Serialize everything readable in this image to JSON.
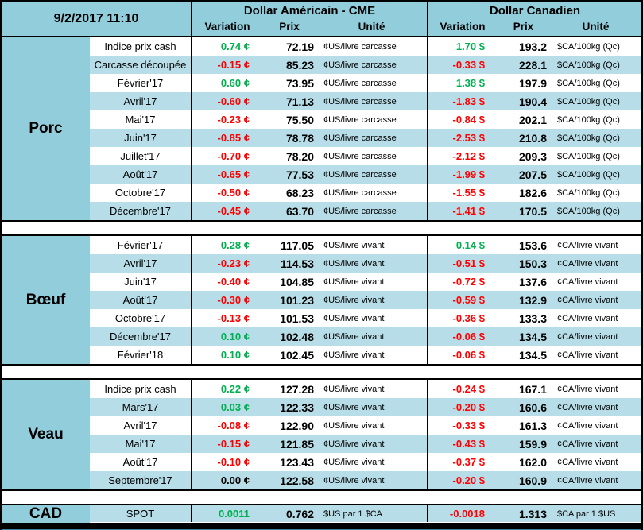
{
  "timestamp": "9/2/2017 11:10",
  "header": {
    "us": {
      "title": "Dollar Américain - CME",
      "cols": [
        "Variation",
        "Prix",
        "Unité"
      ]
    },
    "ca": {
      "title": "Dollar Canadien",
      "cols": [
        "Variation",
        "Prix",
        "Unité"
      ]
    }
  },
  "colors": {
    "positive": "#00B050",
    "negative": "#FF0000",
    "zero": "#000000",
    "header_bg": "#92CDDC",
    "stripe_bg": "#B7DEE8",
    "accent_bar": "#31859C"
  },
  "sections": [
    {
      "name": "Porc",
      "rows": [
        [
          "Indice prix cash",
          "0.74 ¢",
          "72.19",
          "¢US/livre carcasse",
          "1.70 $",
          "193.2",
          "$CA/100kg (Qc)"
        ],
        [
          "Carcasse découpée",
          "-0.15 ¢",
          "85.23",
          "¢US/livre carcasse",
          "-0.33 $",
          "228.1",
          "$CA/100kg (Qc)"
        ],
        [
          "Février'17",
          "0.60 ¢",
          "73.95",
          "¢US/livre carcasse",
          "1.38 $",
          "197.9",
          "$CA/100kg (Qc)"
        ],
        [
          "Avril'17",
          "-0.60 ¢",
          "71.13",
          "¢US/livre carcasse",
          "-1.83 $",
          "190.4",
          "$CA/100kg (Qc)"
        ],
        [
          "Mai'17",
          "-0.23 ¢",
          "75.50",
          "¢US/livre carcasse",
          "-0.84 $",
          "202.1",
          "$CA/100kg (Qc)"
        ],
        [
          "Juin'17",
          "-0.85 ¢",
          "78.78",
          "¢US/livre carcasse",
          "-2.53 $",
          "210.8",
          "$CA/100kg (Qc)"
        ],
        [
          "Juillet'17",
          "-0.70 ¢",
          "78.20",
          "¢US/livre carcasse",
          "-2.12 $",
          "209.3",
          "$CA/100kg (Qc)"
        ],
        [
          "Août'17",
          "-0.65 ¢",
          "77.53",
          "¢US/livre carcasse",
          "-1.99 $",
          "207.5",
          "$CA/100kg (Qc)"
        ],
        [
          "Octobre'17",
          "-0.50 ¢",
          "68.23",
          "¢US/livre carcasse",
          "-1.55 $",
          "182.6",
          "$CA/100kg (Qc)"
        ],
        [
          "Décembre'17",
          "-0.45 ¢",
          "63.70",
          "¢US/livre carcasse",
          "-1.41 $",
          "170.5",
          "$CA/100kg (Qc)"
        ]
      ]
    },
    {
      "name": "Bœuf",
      "rows": [
        [
          "Février'17",
          "0.28 ¢",
          "117.05",
          "¢US/livre vivant",
          "0.14 $",
          "153.6",
          "¢CA/livre vivant"
        ],
        [
          "Avril'17",
          "-0.23 ¢",
          "114.53",
          "¢US/livre vivant",
          "-0.51 $",
          "150.3",
          "¢CA/livre vivant"
        ],
        [
          "Juin'17",
          "-0.40 ¢",
          "104.85",
          "¢US/livre vivant",
          "-0.72 $",
          "137.6",
          "¢CA/livre vivant"
        ],
        [
          "Août'17",
          "-0.30 ¢",
          "101.23",
          "¢US/livre vivant",
          "-0.59 $",
          "132.9",
          "¢CA/livre vivant"
        ],
        [
          "Octobre'17",
          "-0.13 ¢",
          "101.53",
          "¢US/livre vivant",
          "-0.36 $",
          "133.3",
          "¢CA/livre vivant"
        ],
        [
          "Décembre'17",
          "0.10 ¢",
          "102.48",
          "¢US/livre vivant",
          "-0.06 $",
          "134.5",
          "¢CA/livre vivant"
        ],
        [
          "Février'18",
          "0.10 ¢",
          "102.45",
          "¢US/livre vivant",
          "-0.06 $",
          "134.5",
          "¢CA/livre vivant"
        ]
      ]
    },
    {
      "name": "Veau",
      "rows": [
        [
          "Indice prix cash",
          "0.22 ¢",
          "127.28",
          "¢US/livre vivant",
          "-0.24 $",
          "167.1",
          "¢CA/livre vivant"
        ],
        [
          "Mars'17",
          "0.03 ¢",
          "122.33",
          "¢US/livre vivant",
          "-0.20 $",
          "160.6",
          "¢CA/livre vivant"
        ],
        [
          "Avril'17",
          "-0.08 ¢",
          "122.90",
          "¢US/livre vivant",
          "-0.33 $",
          "161.3",
          "¢CA/livre vivant"
        ],
        [
          "Mai'17",
          "-0.15 ¢",
          "121.85",
          "¢US/livre vivant",
          "-0.43 $",
          "159.9",
          "¢CA/livre vivant"
        ],
        [
          "Août'17",
          "-0.10 ¢",
          "123.43",
          "¢US/livre vivant",
          "-0.37 $",
          "162.0",
          "¢CA/livre vivant"
        ],
        [
          "Septembre'17",
          "0.00 ¢",
          "122.58",
          "¢US/livre vivant",
          "-0.20 $",
          "160.9",
          "¢CA/livre vivant"
        ]
      ]
    },
    {
      "name": "CAD",
      "rows": [
        [
          "SPOT",
          "0.0011",
          "0.762",
          "$US par 1 $CA",
          "-0.0018",
          "1.313",
          "$CA par 1 $US"
        ]
      ]
    }
  ]
}
